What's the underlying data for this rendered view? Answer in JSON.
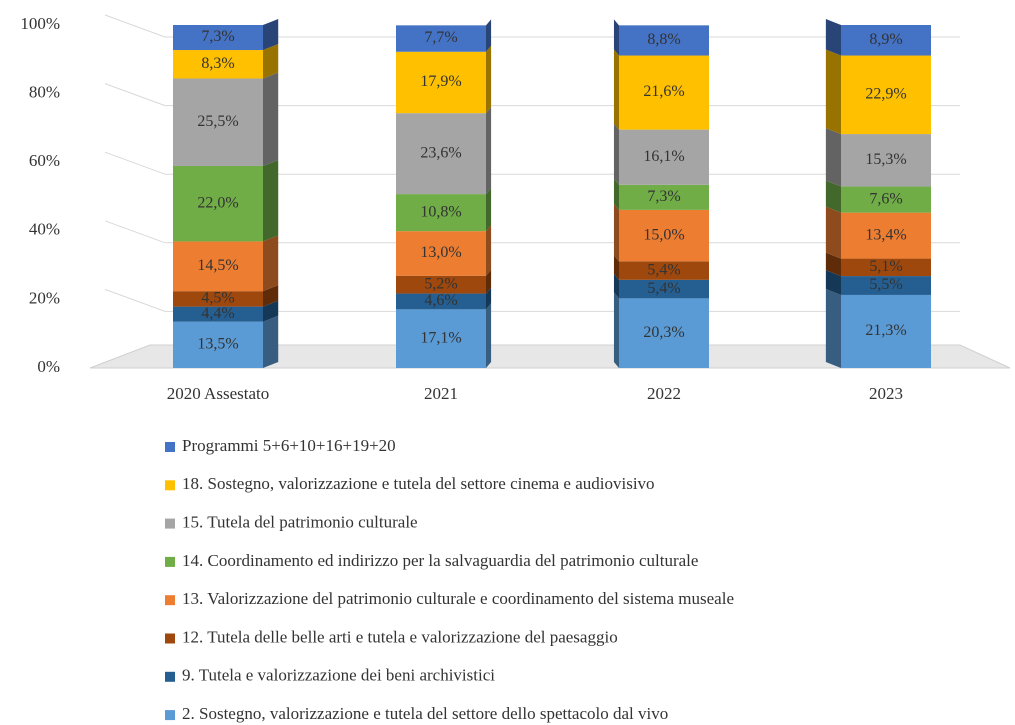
{
  "chart_data": {
    "type": "stacked_bar",
    "categories": [
      "2020 Assestato",
      "2021",
      "2022",
      "2023"
    ],
    "ylim": [
      0,
      100
    ],
    "yticks": [
      {
        "value": 0,
        "label": "0%"
      },
      {
        "value": 20,
        "label": "20%"
      },
      {
        "value": 40,
        "label": "40%"
      },
      {
        "value": 60,
        "label": "60%"
      },
      {
        "value": 80,
        "label": "80%"
      },
      {
        "value": 100,
        "label": "100%"
      }
    ],
    "grid": true,
    "legend": "bottom",
    "series": [
      {
        "name": "2. Sostegno, valorizzazione e tutela del settore dello spettacolo dal vivo",
        "color": "#5b9bd5",
        "values": [
          13.5,
          17.1,
          20.3,
          21.3
        ],
        "value_labels": [
          "13,5%",
          "17,1%",
          "20,3%",
          "21,3%"
        ]
      },
      {
        "name": "9. Tutela e valorizzazione dei beni archivistici",
        "color": "#255e91",
        "values": [
          4.4,
          4.6,
          5.4,
          5.5
        ],
        "value_labels": [
          "4,4%",
          "4,6%",
          "5,4%",
          "5,5%"
        ]
      },
      {
        "name": "12. Tutela delle belle arti e tutela e valorizzazione del paesaggio",
        "color": "#9e480e",
        "values": [
          4.5,
          5.2,
          5.4,
          5.1
        ],
        "value_labels": [
          "4,5%",
          "5,2%",
          "5,4%",
          "5,1%"
        ]
      },
      {
        "name": "13. Valorizzazione del patrimonio culturale e coordinamento del sistema museale",
        "color": "#ed7d31",
        "values": [
          14.5,
          13.0,
          15.0,
          13.4
        ],
        "value_labels": [
          "14,5%",
          "13,0%",
          "15,0%",
          "13,4%"
        ]
      },
      {
        "name": "14. Coordinamento ed indirizzo per la salvaguardia del patrimonio culturale",
        "color": "#70ad47",
        "values": [
          22.0,
          10.8,
          7.3,
          7.6
        ],
        "value_labels": [
          "22,0%",
          "10,8%",
          "7,3%",
          "7,6%"
        ]
      },
      {
        "name": "15. Tutela del patrimonio culturale",
        "color": "#a5a5a5",
        "values": [
          25.5,
          23.6,
          16.1,
          15.3
        ],
        "value_labels": [
          "25,5%",
          "23,6%",
          "16,1%",
          "15,3%"
        ]
      },
      {
        "name": "18. Sostegno, valorizzazione e tutela del settore cinema e audiovisivo",
        "color": "#ffc000",
        "values": [
          8.3,
          17.9,
          21.6,
          22.9
        ],
        "value_labels": [
          "8,3%",
          "17,9%",
          "21,6%",
          "22,9%"
        ]
      },
      {
        "name": "Programmi 5+6+10+16+19+20",
        "color": "#4472c4",
        "values": [
          7.3,
          7.7,
          8.8,
          8.9
        ],
        "value_labels": [
          "7,3%",
          "7,7%",
          "8,8%",
          "8,9%"
        ]
      }
    ]
  }
}
